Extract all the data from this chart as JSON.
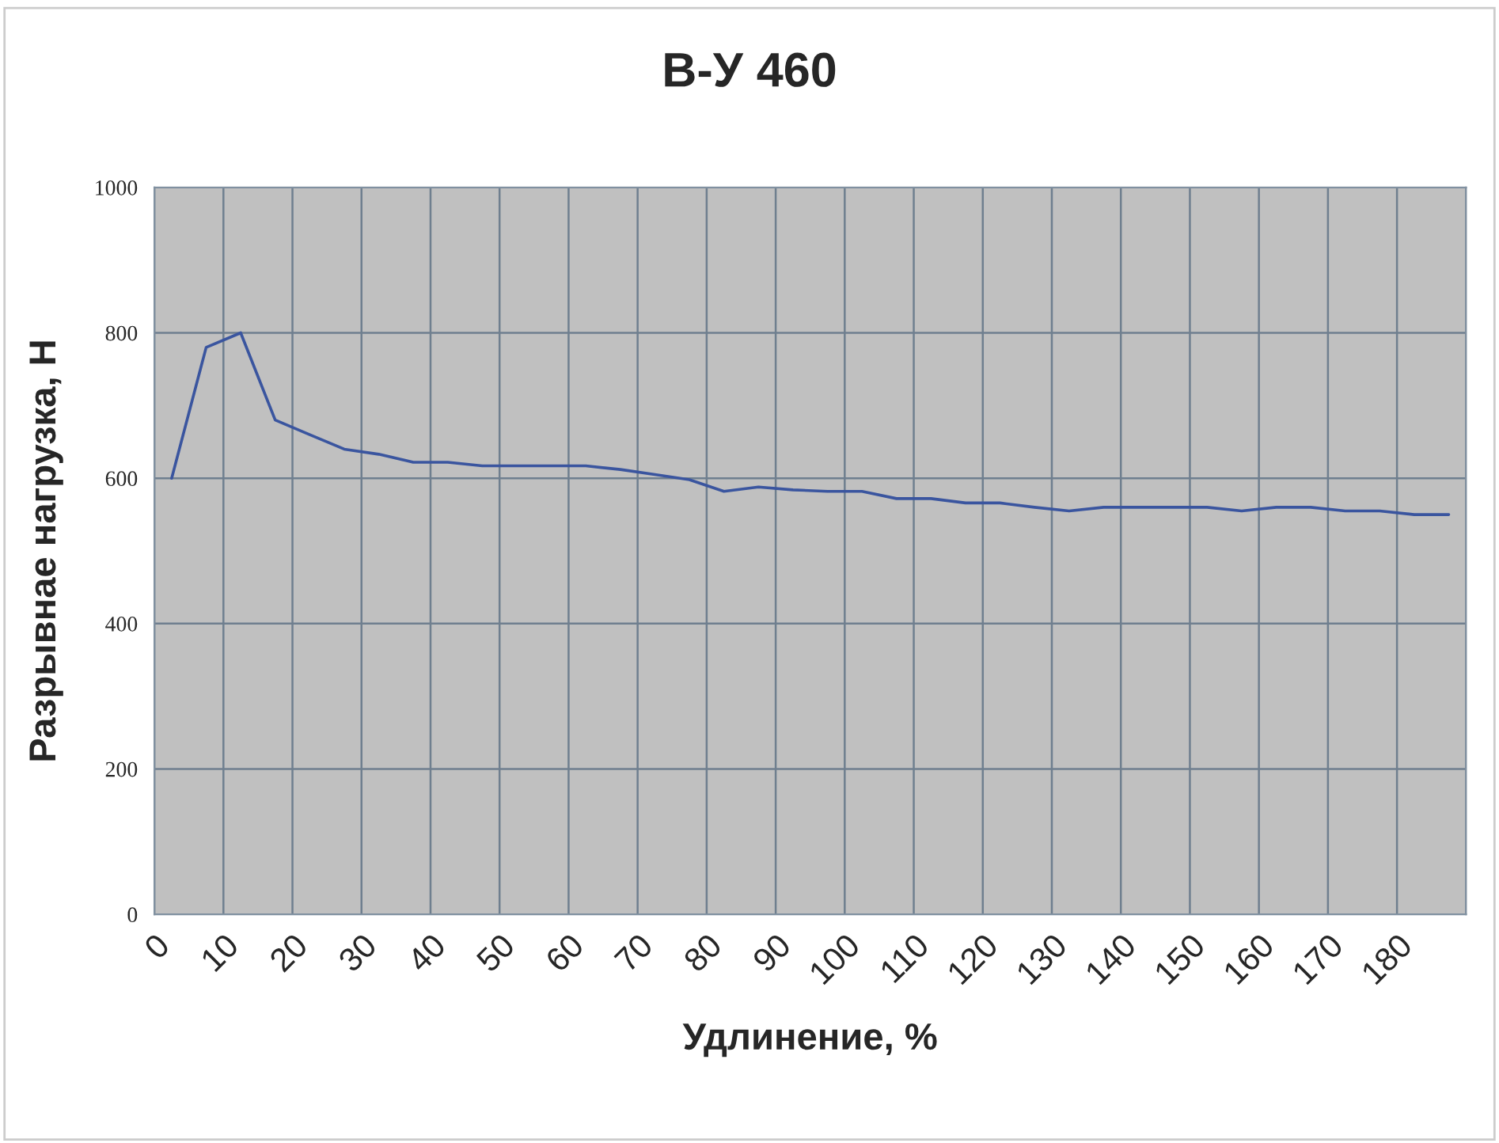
{
  "chart_data": {
    "type": "line",
    "title": "В-У 460",
    "xlabel": "Удлинение, %",
    "ylabel": "Разрывнае нагрузка, Н",
    "x": [
      2.5,
      7.5,
      12.5,
      17.5,
      22.5,
      27.5,
      32.5,
      37.5,
      42.5,
      47.5,
      52.5,
      57.5,
      62.5,
      67.5,
      72.5,
      77.5,
      82.5,
      87.5,
      92.5,
      97.5,
      102.5,
      107.5,
      112.5,
      117.5,
      122.5,
      127.5,
      132.5,
      137.5,
      142.5,
      147.5,
      152.5,
      157.5,
      162.5,
      167.5,
      172.5,
      177.5,
      182.5,
      187.5
    ],
    "series": [
      {
        "color": "#3a559f",
        "values": [
          600,
          780,
          800,
          680,
          660,
          640,
          633,
          622,
          622,
          617,
          617,
          617,
          617,
          612,
          605,
          598,
          582,
          588,
          584,
          582,
          582,
          572,
          572,
          566,
          566,
          560,
          555,
          560,
          560,
          560,
          560,
          555,
          560,
          560,
          555,
          555,
          550,
          550
        ]
      }
    ],
    "xlim": [
      0,
      190
    ],
    "xticks": [
      0,
      10,
      20,
      30,
      40,
      50,
      60,
      70,
      80,
      90,
      100,
      110,
      120,
      130,
      140,
      150,
      160,
      170,
      180,
      {
        "value": 190,
        "label": null
      }
    ],
    "ylim": [
      0,
      1000
    ],
    "yticks": [
      0,
      200,
      400,
      600,
      800,
      1000
    ],
    "grid": true,
    "marker": "none",
    "line_style": "solid"
  }
}
